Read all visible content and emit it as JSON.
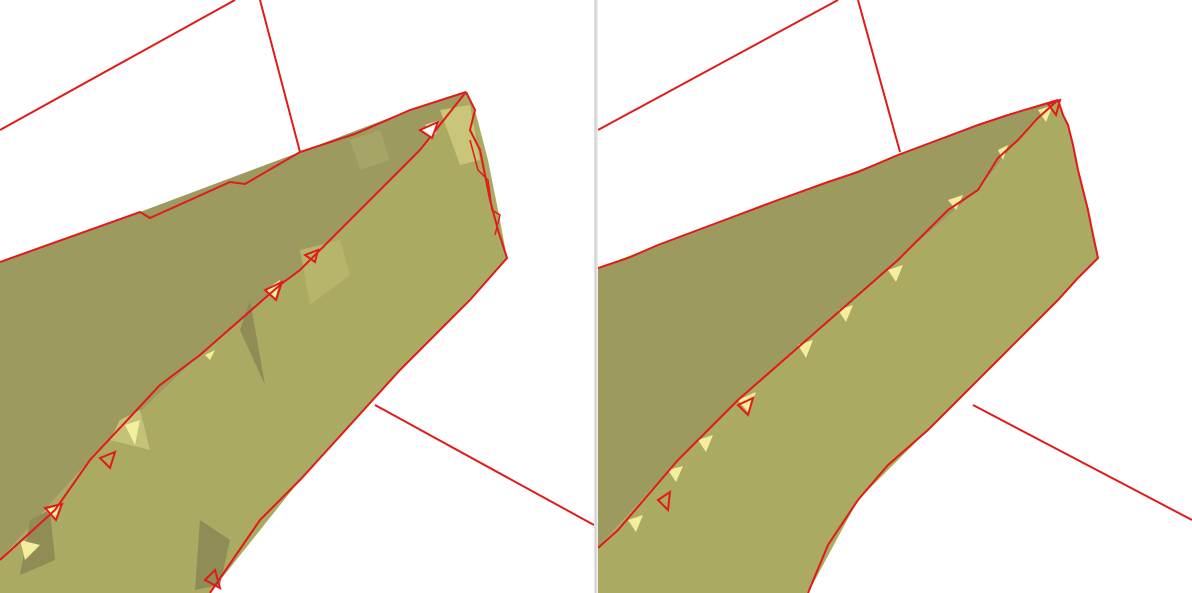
{
  "viewports": [
    {
      "id": "left",
      "label": ""
    },
    {
      "id": "right",
      "label": ""
    }
  ],
  "colors": {
    "background": "#ffffff",
    "mesh_top": "#9c9a5e",
    "mesh_side": "#a9a962",
    "mesh_highlight": "#f2ee9c",
    "edges": "#e11a1a"
  }
}
